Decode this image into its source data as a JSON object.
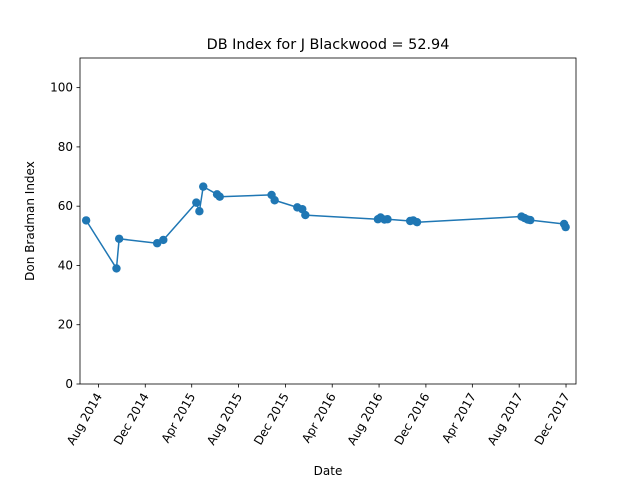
{
  "chart_data": {
    "type": "line",
    "title": "DB Index for J Blackwood = 52.94",
    "xlabel": "Date",
    "ylabel": "Don Bradman Index",
    "ylim": [
      0,
      110
    ],
    "xlim": [
      "2014-06-14",
      "2017-12-27"
    ],
    "grid": false,
    "yticks": [
      0,
      20,
      40,
      60,
      80,
      100
    ],
    "xticks": [
      {
        "date": "2014-08-01",
        "label": "Aug 2014"
      },
      {
        "date": "2014-12-01",
        "label": "Dec 2014"
      },
      {
        "date": "2015-04-01",
        "label": "Apr 2015"
      },
      {
        "date": "2015-08-01",
        "label": "Aug 2015"
      },
      {
        "date": "2015-12-01",
        "label": "Dec 2015"
      },
      {
        "date": "2016-04-01",
        "label": "Apr 2016"
      },
      {
        "date": "2016-08-01",
        "label": "Aug 2016"
      },
      {
        "date": "2016-12-01",
        "label": "Dec 2016"
      },
      {
        "date": "2017-04-01",
        "label": "Apr 2017"
      },
      {
        "date": "2017-08-01",
        "label": "Aug 2017"
      },
      {
        "date": "2017-12-01",
        "label": "Dec 2017"
      }
    ],
    "color": "#1f77b4",
    "series": [
      {
        "points": [
          {
            "x": "2014-06-30",
            "y": 55.2
          },
          {
            "x": "2014-09-17",
            "y": 39.0
          },
          {
            "x": "2014-09-24",
            "y": 49.0
          },
          {
            "x": "2015-01-01",
            "y": 47.5
          },
          {
            "x": "2015-01-17",
            "y": 48.6
          },
          {
            "x": "2015-04-13",
            "y": 61.2
          },
          {
            "x": "2015-04-21",
            "y": 58.3
          },
          {
            "x": "2015-05-01",
            "y": 66.6
          },
          {
            "x": "2015-06-06",
            "y": 64.0
          },
          {
            "x": "2015-06-13",
            "y": 63.2
          },
          {
            "x": "2015-10-26",
            "y": 63.8
          },
          {
            "x": "2015-11-03",
            "y": 62.0
          },
          {
            "x": "2016-01-01",
            "y": 59.6
          },
          {
            "x": "2016-01-14",
            "y": 59.0
          },
          {
            "x": "2016-01-22",
            "y": 57.0
          },
          {
            "x": "2016-07-29",
            "y": 55.6
          },
          {
            "x": "2016-08-05",
            "y": 56.2
          },
          {
            "x": "2016-08-15",
            "y": 55.5
          },
          {
            "x": "2016-08-23",
            "y": 55.6
          },
          {
            "x": "2016-10-21",
            "y": 55.0
          },
          {
            "x": "2016-10-29",
            "y": 55.2
          },
          {
            "x": "2016-11-08",
            "y": 54.6
          },
          {
            "x": "2017-08-07",
            "y": 56.5
          },
          {
            "x": "2017-08-15",
            "y": 56.0
          },
          {
            "x": "2017-08-23",
            "y": 55.5
          },
          {
            "x": "2017-08-30",
            "y": 55.3
          },
          {
            "x": "2017-11-26",
            "y": 54.0
          },
          {
            "x": "2017-11-30",
            "y": 52.94
          }
        ]
      }
    ]
  }
}
